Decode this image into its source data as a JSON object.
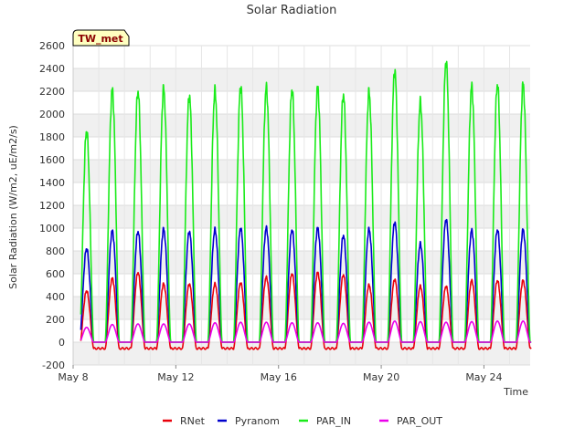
{
  "chart_data": {
    "type": "line",
    "title": "Solar Radiation",
    "xlabel": "Time",
    "ylabel": "Solar Radiation (W/m2, uE/m2/s)",
    "badge": "TW_met",
    "x_range_days": [
      8,
      25.8
    ],
    "xlim": [
      0,
      17.8
    ],
    "ylim": [
      -200,
      2600
    ],
    "y_ticks": [
      -200,
      0,
      200,
      400,
      600,
      800,
      1000,
      1200,
      1400,
      1600,
      1800,
      2000,
      2200,
      2400,
      2600
    ],
    "x_ticks": [
      {
        "day": 8,
        "label": "May 8"
      },
      {
        "day": 12,
        "label": "May 12"
      },
      {
        "day": 16,
        "label": "May 16"
      },
      {
        "day": 20,
        "label": "May 20"
      },
      {
        "day": 24,
        "label": "May 24"
      }
    ],
    "grid": true,
    "legend_position": "bottom",
    "daily_peaks": {
      "days": [
        "May 8",
        "May 9",
        "May 10",
        "May 11",
        "May 12",
        "May 13",
        "May 14",
        "May 15",
        "May 16",
        "May 17",
        "May 18",
        "May 19",
        "May 20",
        "May 21",
        "May 22",
        "May 23",
        "May 24",
        "May 25"
      ],
      "RNet": [
        450,
        560,
        610,
        510,
        510,
        510,
        520,
        570,
        600,
        610,
        590,
        500,
        550,
        490,
        490,
        540,
        540,
        540
      ],
      "Pyranom": [
        820,
        975,
        970,
        990,
        970,
        985,
        1000,
        1000,
        985,
        1000,
        935,
        990,
        1050,
        860,
        1075,
        980,
        985,
        985
      ],
      "PAR_IN": [
        1850,
        2210,
        2200,
        2220,
        2160,
        2200,
        2240,
        2230,
        2215,
        2230,
        2170,
        2190,
        2380,
        2100,
        2460,
        2240,
        2260,
        2260
      ],
      "PAR_OUT": [
        130,
        155,
        160,
        160,
        160,
        170,
        175,
        175,
        170,
        170,
        165,
        175,
        185,
        180,
        175,
        180,
        185,
        185
      ]
    },
    "night_values": {
      "RNet": -55,
      "Pyranom": 0,
      "PAR_IN": 0,
      "PAR_OUT": 0
    },
    "series": [
      {
        "name": "RNet",
        "color": "#e8000b"
      },
      {
        "name": "Pyranom",
        "color": "#0000cd"
      },
      {
        "name": "PAR_IN",
        "color": "#1aeb1a"
      },
      {
        "name": "PAR_OUT",
        "color": "#ea00ea"
      }
    ]
  }
}
